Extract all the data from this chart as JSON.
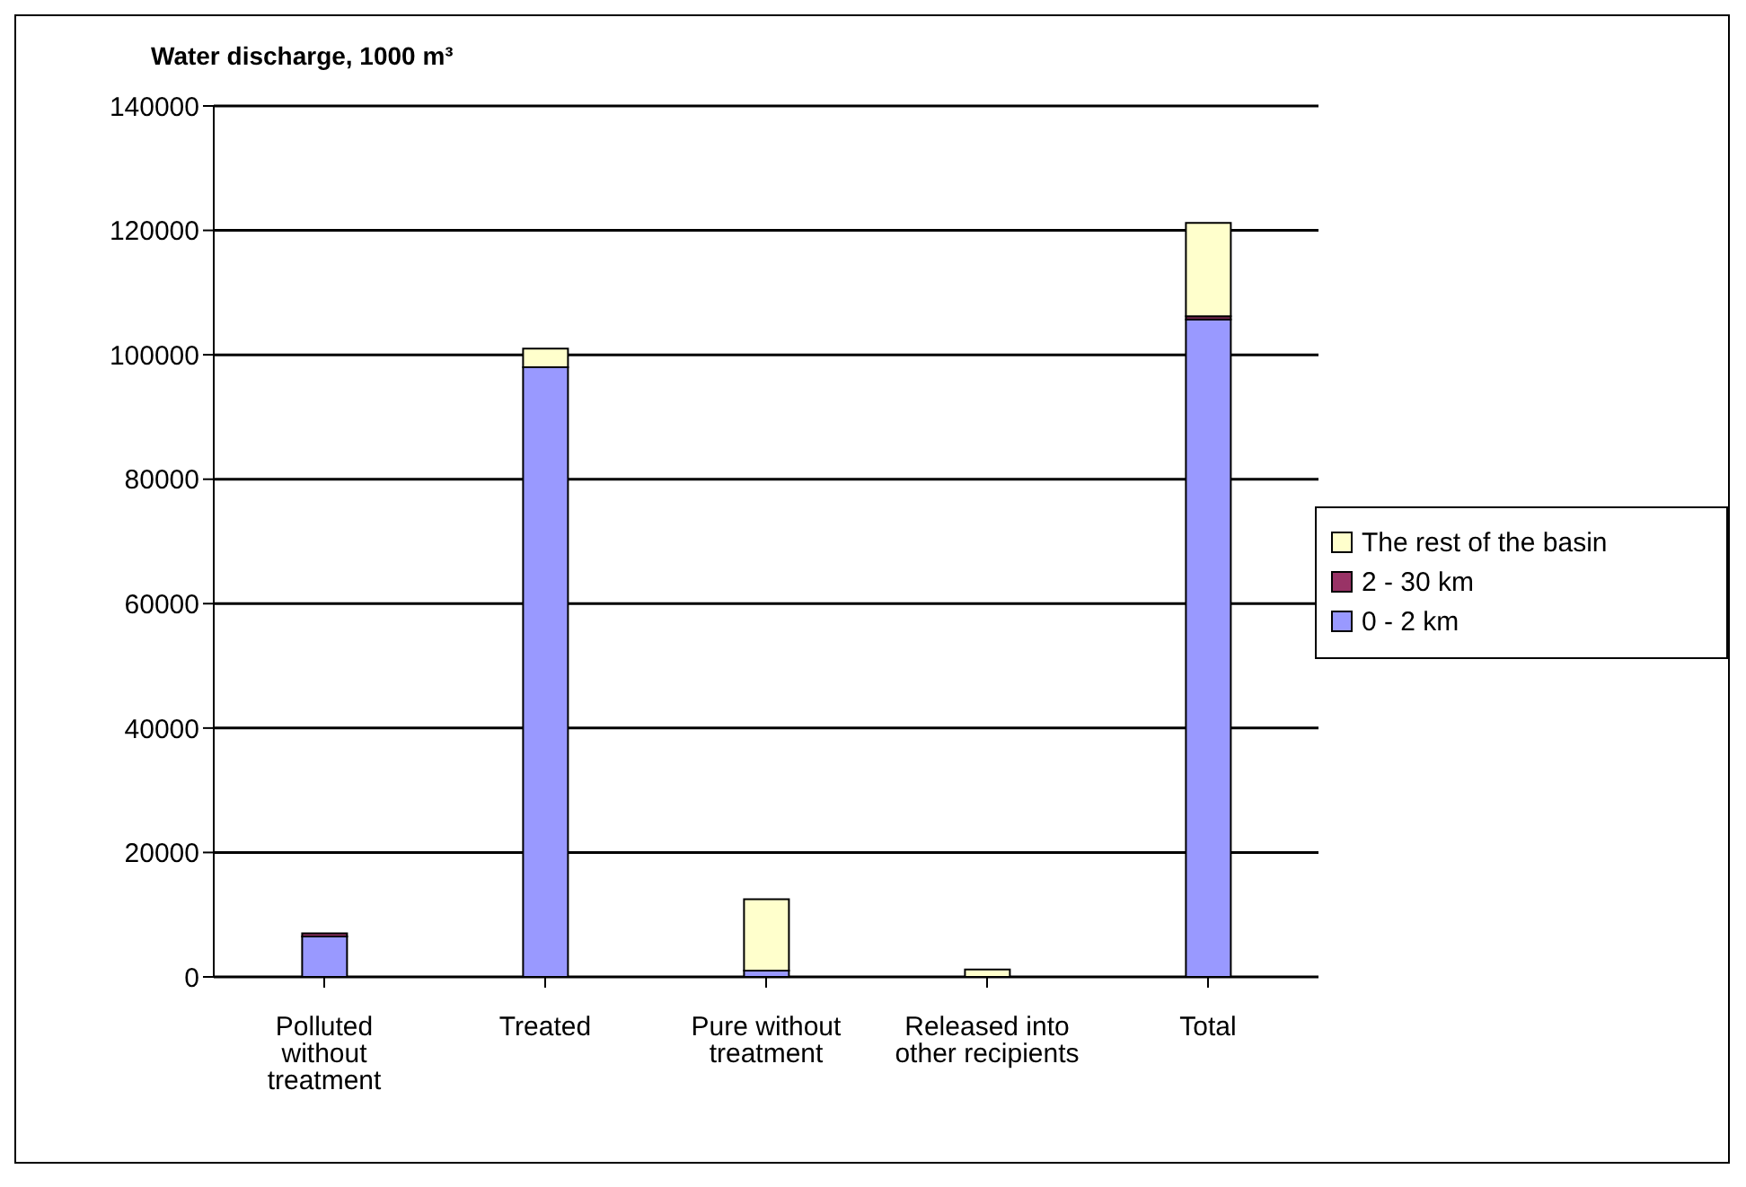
{
  "chart_data": {
    "type": "bar",
    "ylabel": "Water discharge, 1000 m³",
    "categories": [
      "Polluted without treatment",
      "Treated",
      "Pure without treatment",
      "Released into other recipients",
      "Total"
    ],
    "stacked": true,
    "series": [
      {
        "name": "0 - 2 km",
        "color": "#9999ff",
        "values": [
          6500,
          98000,
          1000,
          null,
          105700
        ]
      },
      {
        "name": "2 - 30 km",
        "color": "#993366",
        "values": [
          500,
          0,
          0,
          0,
          500
        ]
      },
      {
        "name": "The rest of the basin",
        "color": "#ffffcc",
        "values": [
          0,
          3000,
          11500,
          1200,
          15000
        ]
      }
    ],
    "ylim": [
      0,
      140000
    ],
    "yticks": [
      0,
      20000,
      40000,
      60000,
      80000,
      100000,
      120000,
      140000
    ],
    "grid": "y",
    "legend": "right"
  }
}
